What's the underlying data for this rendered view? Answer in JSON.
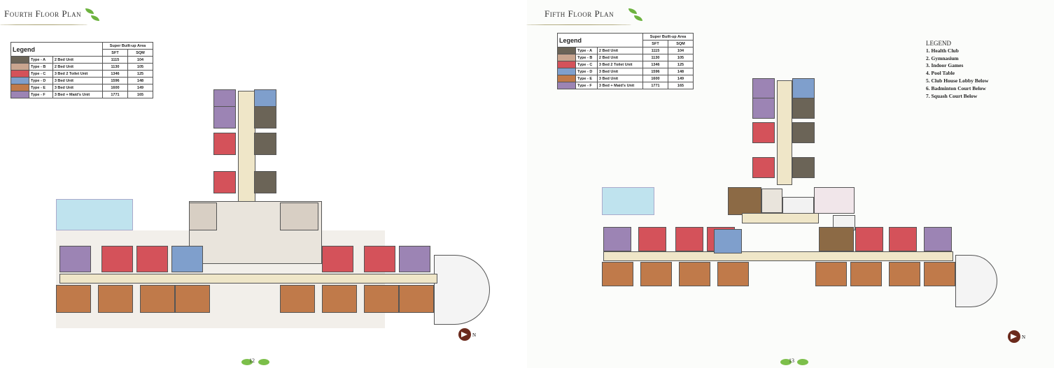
{
  "pages": [
    {
      "title": "Fourth Floor Plan",
      "page_number": "12"
    },
    {
      "title": "Fifth Floor Plan",
      "page_number": "13"
    }
  ],
  "unit_legend": {
    "title": "Legend",
    "area_header": "Super Built-up Area",
    "col_sft": "SFT",
    "col_sqm": "SQM",
    "rows": [
      {
        "type": "Type - A",
        "desc": "2 Bed Unit",
        "sft": "1115",
        "sqm": "104",
        "color": "#6b6457"
      },
      {
        "type": "Type - B",
        "desc": "2 Bed Unit",
        "sft": "1130",
        "sqm": "105",
        "color": "#c9a58f"
      },
      {
        "type": "Type - C",
        "desc": "3 Bed 2 Toilet Unit",
        "sft": "1346",
        "sqm": "125",
        "color": "#d4525a"
      },
      {
        "type": "Type - D",
        "desc": "3 Bed Unit",
        "sft": "1596",
        "sqm": "148",
        "color": "#7f9fcc"
      },
      {
        "type": "Type - E",
        "desc": "3 Bed Unit",
        "sft": "1600",
        "sqm": "149",
        "color": "#c07a4a"
      },
      {
        "type": "Type - F",
        "desc": "3 Bed + Maid's Unit",
        "sft": "1771",
        "sqm": "165",
        "color": "#9c84b4"
      }
    ]
  },
  "amenity_legend": {
    "title": "LEGEND",
    "items": [
      "1.  Health Club",
      "2.  Gymnasium",
      "3.  Indoor Games",
      "4.  Pool Table",
      "5.  Club House Lobby Below",
      "6.  Badminton Court Below",
      "7.  Squash Court Below"
    ]
  },
  "north_label": "N"
}
